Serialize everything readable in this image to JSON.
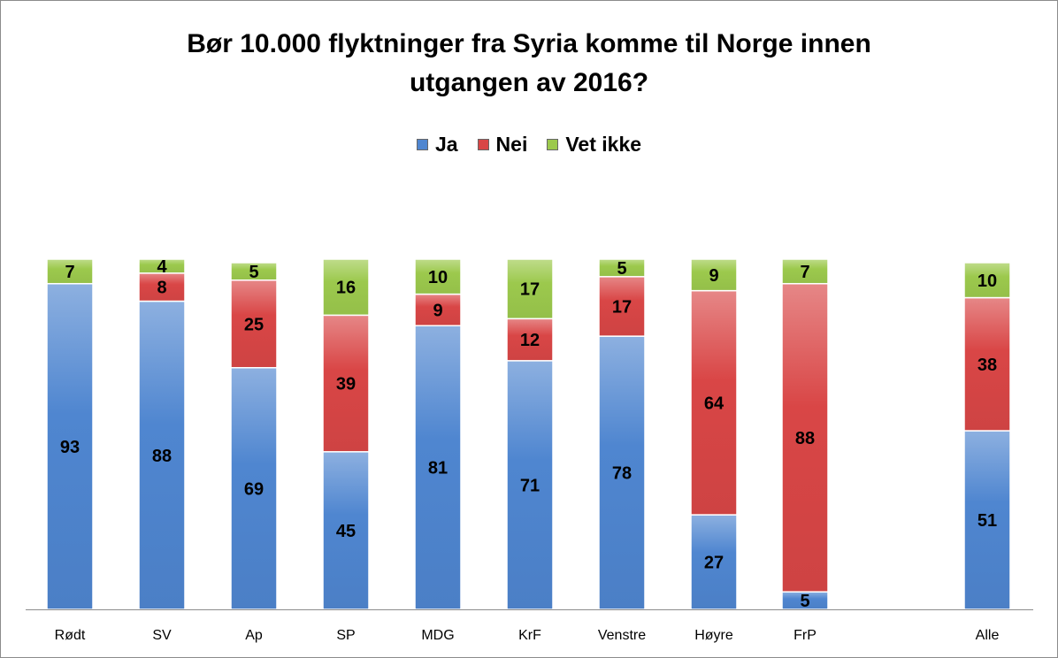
{
  "chart_data": {
    "type": "bar",
    "stacked": true,
    "title_lines": [
      "Bør 10.000 flyktninger fra Syria komme til Norge innen",
      "utgangen av 2016?"
    ],
    "legend_position": "top",
    "grid": false,
    "categories": [
      "Rødt",
      "SV",
      "Ap",
      "SP",
      "MDG",
      "KrF",
      "Venstre",
      "Høyre",
      "FrP",
      "Alle"
    ],
    "series": [
      {
        "name": "Ja",
        "color": "#4f86d0",
        "values": [
          93,
          88,
          69,
          45,
          81,
          71,
          78,
          27,
          5,
          51
        ]
      },
      {
        "name": "Nei",
        "color": "#d94646",
        "values": [
          0,
          8,
          25,
          39,
          9,
          12,
          17,
          64,
          88,
          38
        ]
      },
      {
        "name": "Vet ikke",
        "color": "#9cc94d",
        "values": [
          7,
          4,
          5,
          16,
          10,
          17,
          5,
          9,
          7,
          10
        ]
      }
    ],
    "ylim": [
      0,
      100
    ]
  }
}
